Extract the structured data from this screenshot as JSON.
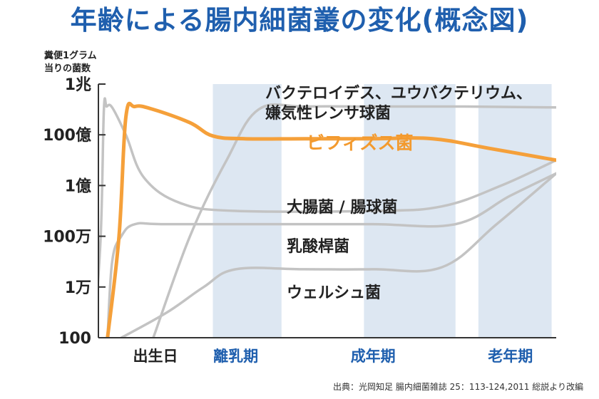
{
  "title": "年齢による腸内細菌叢の変化(概念図)",
  "ylabel_line1": "糞便1グラム",
  "ylabel_line2": "当りの菌数",
  "source": "出典：光岡知足 腸内細菌雑誌 25：113-124,2011 総説より改編",
  "colors": {
    "title": "#1f5fae",
    "band": "#dde7f2",
    "period_label": "#1f5fae",
    "gray_line": "#c3c3c3",
    "bifido_line": "#f5a03a",
    "bifido_label": "#f39a2e",
    "axis": "#333333"
  },
  "chart_data": {
    "type": "line",
    "title": "年齢による腸内細菌叢の変化(概念図)",
    "ylabel": "糞便1グラム当りの菌数",
    "y_scale": "log",
    "y_ticks": [
      "1兆",
      "100億",
      "1億",
      "100万",
      "1万",
      "100"
    ],
    "y_tick_values": [
      1000000000000.0,
      10000000000.0,
      100000000.0,
      1000000.0,
      10000.0,
      100.0
    ],
    "ylim": [
      100,
      1000000000000.0
    ],
    "x_categories": [
      "出生日",
      "離乳期",
      "成年期",
      "老年期"
    ],
    "x_category_values": [
      0,
      3,
      6,
      9
    ],
    "xlim": [
      0,
      10
    ],
    "shaded_periods": [
      {
        "label": "離乳期",
        "x": [
          2.5,
          4.0
        ]
      },
      {
        "label": "成年期",
        "x": [
          5.8,
          7.8
        ]
      },
      {
        "label": "老年期",
        "x": [
          8.3,
          9.9
        ]
      }
    ],
    "series": [
      {
        "name": "バクテロイデス、ユウバクテリウム、嫌気性レンサ球菌",
        "highlight": false,
        "x": [
          1.2,
          2.0,
          2.8,
          3.5,
          4.5,
          6.0,
          8.0,
          10.0
        ],
        "y": [
          100,
          1000000.0,
          1000000000.0,
          100000000000.0,
          130000000000.0,
          130000000000.0,
          130000000000.0,
          120000000000.0
        ]
      },
      {
        "name": "ビフィズス菌",
        "highlight": true,
        "x": [
          0.2,
          0.45,
          0.6,
          0.8,
          1.2,
          2.0,
          2.5,
          3.2,
          4.5,
          6.0,
          7.3,
          8.5,
          10.0
        ],
        "y": [
          100,
          1000000.0,
          50000000000.0,
          130000000000.0,
          100000000000.0,
          30000000000.0,
          9000000000.0,
          7000000000.0,
          7000000000.0,
          7000000000.0,
          7000000000.0,
          3000000000.0,
          1000000000.0
        ]
      },
      {
        "name": "大腸菌 / 腸球菌",
        "highlight": false,
        "x": [
          -0.1,
          0.05,
          0.12,
          0.18,
          0.3,
          0.6,
          1.0,
          1.8,
          3.0,
          6.0,
          7.5,
          8.8,
          10.0
        ],
        "y": [
          100,
          1000000.0,
          100000000000.0,
          130000000000.0,
          120000000000.0,
          10000000000.0,
          200000000.0,
          20000000.0,
          10000000.0,
          10000000.0,
          15000000.0,
          100000000.0,
          1000000000.0
        ]
      },
      {
        "name": "乳酸桿菌",
        "highlight": false,
        "x": [
          0.2,
          0.3,
          0.5,
          0.8,
          1.5,
          4.0,
          6.0,
          7.8,
          9.0,
          10.0
        ],
        "y": [
          100,
          100000.0,
          1000000.0,
          3000000.0,
          3000000.0,
          3000000.0,
          3000000.0,
          3000000.0,
          40000000.0,
          300000000.0
        ]
      },
      {
        "name": "ウェルシュ菌",
        "highlight": false,
        "x": [
          0.5,
          1.5,
          2.3,
          3.0,
          4.5,
          6.0,
          7.5,
          8.7,
          10.0
        ],
        "y": [
          100,
          1000.0,
          10000.0,
          50000.0,
          50000.0,
          50000.0,
          60000.0,
          3000000.0,
          300000000.0
        ]
      }
    ],
    "annotations": [
      {
        "text": "バクテロイデス、ユウバクテリウム、",
        "series": 0
      },
      {
        "text": "嫌気性レンサ球菌",
        "series": 0
      },
      {
        "text": "ビフィズス菌",
        "series": 1
      },
      {
        "text": "大腸菌 / 腸球菌",
        "series": 2
      },
      {
        "text": "乳酸桿菌",
        "series": 3
      },
      {
        "text": "ウェルシュ菌",
        "series": 4
      }
    ],
    "grid": false,
    "legend": "none"
  }
}
